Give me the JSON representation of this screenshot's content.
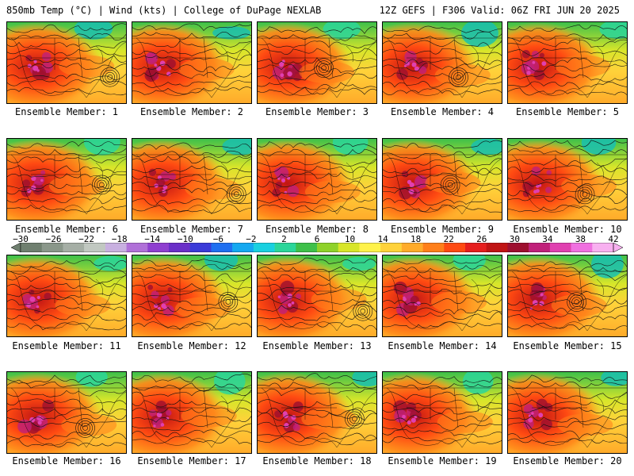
{
  "header": {
    "left": "850mb Temp (°C) | Wind (kts) | College of DuPage NEXLAB",
    "right": "12Z GEFS | F306 Valid: 06Z FRI JUN 20 2025"
  },
  "member_label_prefix": "Ensemble Member: ",
  "members": [
    1,
    2,
    3,
    4,
    5,
    6,
    7,
    8,
    9,
    10,
    11,
    12,
    13,
    14,
    15,
    16,
    17,
    18,
    19,
    20
  ],
  "colorbar": {
    "ticks": [
      "−30",
      "−26",
      "−22",
      "−18",
      "−14",
      "−10",
      "−6",
      "−2",
      "2",
      "6",
      "10",
      "14",
      "18",
      "22",
      "26",
      "30",
      "34",
      "38",
      "42"
    ],
    "colors": [
      "#6f7f6f",
      "#8a978a",
      "#a5aea5",
      "#c1c8c1",
      "#c8b0e0",
      "#b070d8",
      "#8f3fd0",
      "#6a2fc8",
      "#3a3ad8",
      "#1f6ff0",
      "#14a8f0",
      "#19d0e0",
      "#2bd69a",
      "#3ec04a",
      "#8fd22a",
      "#d8e62a",
      "#fff24a",
      "#ffd23a",
      "#ffab2a",
      "#ff7f1a",
      "#ff4a12",
      "#e61e1e",
      "#c01414",
      "#9e0f2f",
      "#c0207a",
      "#e040b0",
      "#f070e0",
      "#f8b0f0"
    ]
  }
}
